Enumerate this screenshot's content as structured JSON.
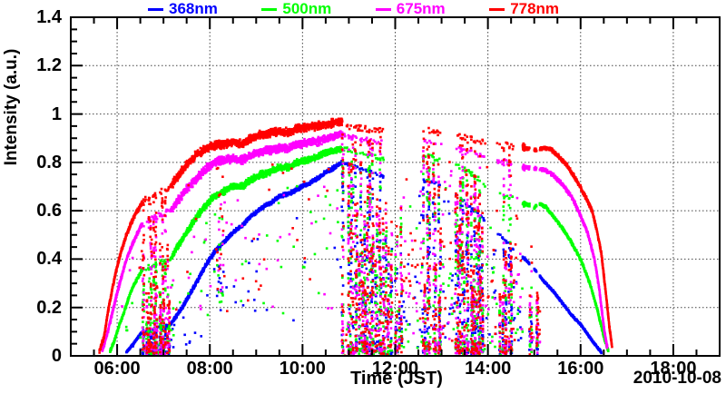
{
  "chart_data": {
    "type": "scatter",
    "title": "",
    "xlabel": "Time (JST)",
    "ylabel": "Intensity (a.u.)",
    "date_label": "2010-10-08",
    "grid": {
      "on": true,
      "style": "dotted",
      "color": "#444444"
    },
    "x_axis": {
      "min_hour": 5,
      "max_hour": 19,
      "minor_step_hours": 0.5,
      "major_ticks": [
        {
          "t": 6,
          "label": "06:00"
        },
        {
          "t": 8,
          "label": "08:00"
        },
        {
          "t": 10,
          "label": "10:00"
        },
        {
          "t": 12,
          "label": "12:00"
        },
        {
          "t": 14,
          "label": "14:00"
        },
        {
          "t": 16,
          "label": "16:00"
        },
        {
          "t": 18,
          "label": "18:00"
        }
      ]
    },
    "y_axis": {
      "min": 0,
      "max": 1.4,
      "minor_step": 0.05,
      "major_ticks": [
        {
          "v": 0,
          "label": "0"
        },
        {
          "v": 0.2,
          "label": "0.2"
        },
        {
          "v": 0.4,
          "label": "0.4"
        },
        {
          "v": 0.6,
          "label": "0.6"
        },
        {
          "v": 0.8,
          "label": "0.8"
        },
        {
          "v": 1,
          "label": "1"
        },
        {
          "v": 1.2,
          "label": "1.2"
        },
        {
          "v": 1.4,
          "label": "1.4"
        }
      ]
    },
    "legend": {
      "position": "top",
      "entries": [
        {
          "label": "368nm",
          "color": "#0000ff"
        },
        {
          "label": "500nm",
          "color": "#00ff00"
        },
        {
          "label": "675nm",
          "color": "#ff00ff"
        },
        {
          "label": "778nm",
          "color": "#ff0000"
        }
      ]
    },
    "series": [
      {
        "name": "368nm",
        "color": "#0000ff",
        "seed": 11,
        "sigma": 0.006,
        "envelope": [
          [
            6.2,
            0.015
          ],
          [
            6.35,
            0.05
          ],
          [
            6.5,
            0.09
          ],
          [
            6.55,
            0.1
          ],
          [
            7.15,
            0.13
          ],
          [
            7.3,
            0.17
          ],
          [
            7.5,
            0.23
          ],
          [
            7.7,
            0.3
          ],
          [
            7.9,
            0.37
          ],
          [
            8.1,
            0.43
          ],
          [
            8.3,
            0.47
          ],
          [
            8.5,
            0.51
          ],
          [
            8.7,
            0.54
          ],
          [
            8.9,
            0.58
          ],
          [
            9.1,
            0.61
          ],
          [
            9.3,
            0.63
          ],
          [
            9.5,
            0.66
          ],
          [
            9.7,
            0.67
          ],
          [
            9.9,
            0.69
          ],
          [
            10.1,
            0.71
          ],
          [
            10.3,
            0.73
          ],
          [
            10.5,
            0.76
          ],
          [
            10.7,
            0.78
          ],
          [
            10.85,
            0.8
          ],
          [
            11.2,
            0.78
          ],
          [
            11.6,
            0.75
          ],
          [
            12.0,
            0.72
          ],
          [
            12.4,
            0.73
          ],
          [
            12.8,
            0.72
          ],
          [
            13.2,
            0.68
          ],
          [
            13.6,
            0.62
          ],
          [
            14.0,
            0.55
          ],
          [
            14.4,
            0.47
          ],
          [
            14.8,
            0.4
          ],
          [
            15.0,
            0.36
          ],
          [
            15.2,
            0.31
          ],
          [
            15.4,
            0.27
          ],
          [
            15.6,
            0.22
          ],
          [
            15.8,
            0.17
          ],
          [
            16.0,
            0.13
          ],
          [
            16.15,
            0.09
          ],
          [
            16.3,
            0.05
          ],
          [
            16.45,
            0.015
          ]
        ]
      },
      {
        "name": "500nm",
        "color": "#00ff00",
        "seed": 22,
        "sigma": 0.01,
        "envelope": [
          [
            5.85,
            0.02
          ],
          [
            5.95,
            0.07
          ],
          [
            6.05,
            0.13
          ],
          [
            6.15,
            0.18
          ],
          [
            6.25,
            0.24
          ],
          [
            6.35,
            0.29
          ],
          [
            6.5,
            0.34
          ],
          [
            6.55,
            0.36
          ],
          [
            7.15,
            0.4
          ],
          [
            7.3,
            0.45
          ],
          [
            7.5,
            0.51
          ],
          [
            7.7,
            0.57
          ],
          [
            7.9,
            0.62
          ],
          [
            8.1,
            0.66
          ],
          [
            8.3,
            0.68
          ],
          [
            8.5,
            0.7
          ],
          [
            8.7,
            0.7
          ],
          [
            8.9,
            0.73
          ],
          [
            9.1,
            0.75
          ],
          [
            9.3,
            0.76
          ],
          [
            9.5,
            0.78
          ],
          [
            9.7,
            0.78
          ],
          [
            9.9,
            0.8
          ],
          [
            10.1,
            0.81
          ],
          [
            10.3,
            0.82
          ],
          [
            10.5,
            0.84
          ],
          [
            10.7,
            0.85
          ],
          [
            10.85,
            0.86
          ],
          [
            11.2,
            0.84
          ],
          [
            11.6,
            0.82
          ],
          [
            12.0,
            0.82
          ],
          [
            12.4,
            0.83
          ],
          [
            12.8,
            0.82
          ],
          [
            13.2,
            0.8
          ],
          [
            13.6,
            0.76
          ],
          [
            14.0,
            0.7
          ],
          [
            14.4,
            0.66
          ],
          [
            14.8,
            0.63
          ],
          [
            15.0,
            0.615
          ],
          [
            15.1,
            0.63
          ],
          [
            15.25,
            0.615
          ],
          [
            15.4,
            0.58
          ],
          [
            15.6,
            0.53
          ],
          [
            15.8,
            0.47
          ],
          [
            16.0,
            0.4
          ],
          [
            16.2,
            0.3
          ],
          [
            16.35,
            0.2
          ],
          [
            16.5,
            0.08
          ],
          [
            16.6,
            0.02
          ]
        ]
      },
      {
        "name": "675nm",
        "color": "#ff00ff",
        "seed": 33,
        "sigma": 0.012,
        "envelope": [
          [
            5.68,
            0.02
          ],
          [
            5.8,
            0.1
          ],
          [
            5.9,
            0.18
          ],
          [
            6.0,
            0.26
          ],
          [
            6.1,
            0.33
          ],
          [
            6.2,
            0.4
          ],
          [
            6.35,
            0.47
          ],
          [
            6.5,
            0.53
          ],
          [
            6.55,
            0.55
          ],
          [
            7.15,
            0.6
          ],
          [
            7.3,
            0.64
          ],
          [
            7.5,
            0.69
          ],
          [
            7.7,
            0.73
          ],
          [
            7.9,
            0.77
          ],
          [
            8.1,
            0.8
          ],
          [
            8.3,
            0.81
          ],
          [
            8.5,
            0.815
          ],
          [
            8.7,
            0.81
          ],
          [
            8.9,
            0.83
          ],
          [
            9.1,
            0.845
          ],
          [
            9.3,
            0.85
          ],
          [
            9.5,
            0.86
          ],
          [
            9.7,
            0.86
          ],
          [
            9.9,
            0.875
          ],
          [
            10.1,
            0.88
          ],
          [
            10.3,
            0.885
          ],
          [
            10.5,
            0.895
          ],
          [
            10.7,
            0.91
          ],
          [
            10.85,
            0.92
          ],
          [
            11.2,
            0.9
          ],
          [
            11.6,
            0.88
          ],
          [
            12.0,
            0.88
          ],
          [
            12.4,
            0.89
          ],
          [
            12.8,
            0.88
          ],
          [
            13.2,
            0.86
          ],
          [
            13.6,
            0.84
          ],
          [
            14.0,
            0.82
          ],
          [
            14.4,
            0.8
          ],
          [
            14.8,
            0.78
          ],
          [
            15.0,
            0.775
          ],
          [
            15.2,
            0.77
          ],
          [
            15.4,
            0.75
          ],
          [
            15.6,
            0.71
          ],
          [
            15.8,
            0.66
          ],
          [
            16.0,
            0.58
          ],
          [
            16.15,
            0.51
          ],
          [
            16.3,
            0.4
          ],
          [
            16.4,
            0.28
          ],
          [
            16.5,
            0.12
          ],
          [
            16.58,
            0.03
          ]
        ]
      },
      {
        "name": "778nm",
        "color": "#ff0000",
        "seed": 44,
        "sigma": 0.012,
        "envelope": [
          [
            5.62,
            0.02
          ],
          [
            5.72,
            0.08
          ],
          [
            5.8,
            0.18
          ],
          [
            5.9,
            0.28
          ],
          [
            6.0,
            0.37
          ],
          [
            6.1,
            0.44
          ],
          [
            6.2,
            0.5
          ],
          [
            6.35,
            0.57
          ],
          [
            6.5,
            0.62
          ],
          [
            6.55,
            0.64
          ],
          [
            7.15,
            0.7
          ],
          [
            7.3,
            0.74
          ],
          [
            7.5,
            0.79
          ],
          [
            7.7,
            0.83
          ],
          [
            7.9,
            0.855
          ],
          [
            8.1,
            0.87
          ],
          [
            8.3,
            0.875
          ],
          [
            8.5,
            0.885
          ],
          [
            8.7,
            0.875
          ],
          [
            8.9,
            0.9
          ],
          [
            9.1,
            0.915
          ],
          [
            9.3,
            0.92
          ],
          [
            9.5,
            0.93
          ],
          [
            9.7,
            0.925
          ],
          [
            9.9,
            0.94
          ],
          [
            10.1,
            0.945
          ],
          [
            10.3,
            0.95
          ],
          [
            10.5,
            0.955
          ],
          [
            10.7,
            0.965
          ],
          [
            10.85,
            0.97
          ],
          [
            11.0,
            0.95
          ],
          [
            11.3,
            0.94
          ],
          [
            11.6,
            0.93
          ],
          [
            12.0,
            0.93
          ],
          [
            12.4,
            0.94
          ],
          [
            12.8,
            0.93
          ],
          [
            13.2,
            0.91
          ],
          [
            13.6,
            0.9
          ],
          [
            14.0,
            0.88
          ],
          [
            14.4,
            0.87
          ],
          [
            14.8,
            0.86
          ],
          [
            15.0,
            0.85
          ],
          [
            15.2,
            0.86
          ],
          [
            15.35,
            0.855
          ],
          [
            15.5,
            0.83
          ],
          [
            15.7,
            0.79
          ],
          [
            15.9,
            0.73
          ],
          [
            16.1,
            0.66
          ],
          [
            16.25,
            0.6
          ],
          [
            16.35,
            0.52
          ],
          [
            16.45,
            0.42
          ],
          [
            16.55,
            0.25
          ],
          [
            16.62,
            0.12
          ],
          [
            16.68,
            0.04
          ]
        ]
      }
    ],
    "cloud_periods": [
      {
        "start": 6.55,
        "end": 7.15,
        "mode": "heavy"
      },
      {
        "start": 8.15,
        "end": 8.3,
        "mode": "dip"
      },
      {
        "start": 10.85,
        "end": 11.75,
        "mode": "heavy"
      },
      {
        "start": 11.75,
        "end": 12.15,
        "mode": "medium"
      },
      {
        "start": 12.15,
        "end": 12.6,
        "mode": "light"
      },
      {
        "start": 12.6,
        "end": 13.0,
        "mode": "heavy"
      },
      {
        "start": 13.0,
        "end": 13.3,
        "mode": "light"
      },
      {
        "start": 13.3,
        "end": 13.95,
        "mode": "heavy"
      },
      {
        "start": 13.95,
        "end": 14.2,
        "mode": "light"
      },
      {
        "start": 14.2,
        "end": 14.55,
        "mode": "heavy"
      },
      {
        "start": 14.55,
        "end": 14.75,
        "mode": "light"
      },
      {
        "start": 14.9,
        "end": 15.0,
        "mode": "medium"
      },
      {
        "start": 15.05,
        "end": 15.12,
        "mode": "medium"
      }
    ]
  }
}
